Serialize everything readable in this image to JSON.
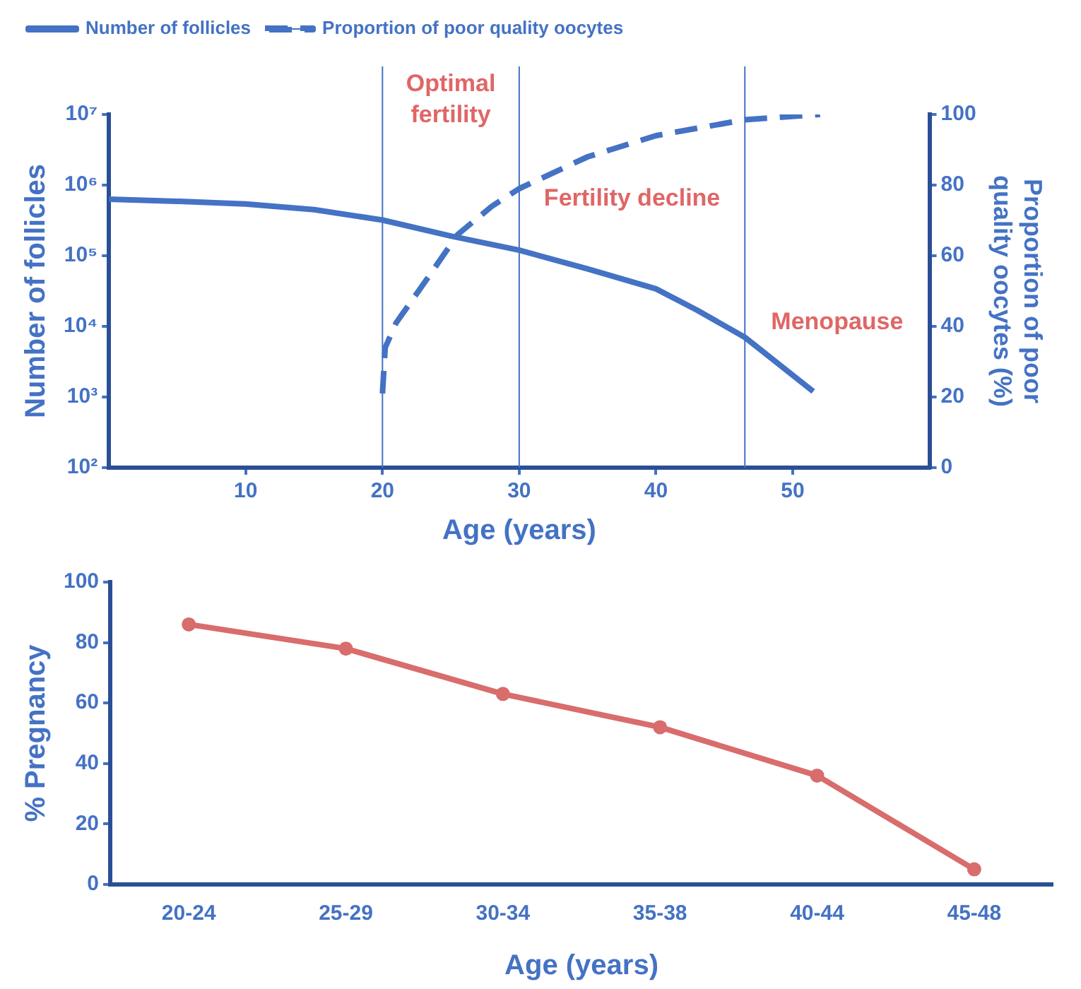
{
  "chart_data": [
    {
      "type": "line",
      "xlabel": "Age (years)",
      "ylabel": "Number of follicles",
      "y2label": "Proportion of poor quality oocytes (%)",
      "xlim": [
        0,
        60
      ],
      "xticks": [
        10,
        20,
        30,
        40,
        50
      ],
      "log": "y",
      "ylim": [
        100,
        10000000
      ],
      "yticks": [
        {
          "value": 100,
          "label": "10²"
        },
        {
          "value": 1000,
          "label": "10³"
        },
        {
          "value": 10000,
          "label": "10⁴"
        },
        {
          "value": 100000,
          "label": "10⁵"
        },
        {
          "value": 1000000,
          "label": "10⁶"
        },
        {
          "value": 10000000,
          "label": "10⁷"
        }
      ],
      "y2lim": [
        0,
        100
      ],
      "y2ticks": [
        0,
        20,
        40,
        60,
        80,
        100
      ],
      "legend": "top left",
      "marker": "none",
      "grid": false,
      "series": [
        {
          "name": "Number of follicles",
          "color": "#4472c4",
          "line_style": "solid",
          "x": [
            0,
            5,
            10,
            15,
            20,
            25,
            30,
            35,
            40,
            43,
            46.5,
            51.5
          ],
          "values": [
            630000,
            590000,
            540000,
            450000,
            320000,
            190000,
            120000,
            65000,
            34000,
            17000,
            7000,
            1200
          ]
        },
        {
          "name": "Proportion of poor quality oocytes",
          "color": "#4472c4",
          "line_style": "dashed",
          "axis": "y2",
          "x": [
            20,
            20.2,
            21,
            23,
            25.5,
            28,
            30,
            35,
            40,
            46.5,
            52
          ],
          "values": [
            21,
            34,
            41,
            52,
            66,
            74,
            79,
            88,
            94,
            98.5,
            100
          ]
        }
      ],
      "ref_lines": [
        {
          "axis": "x",
          "value": 20
        },
        {
          "axis": "x",
          "value": 30
        },
        {
          "axis": "x",
          "value": 46.5
        }
      ],
      "annotations": [
        "Optimal fertility",
        "Fertility decline",
        "Menopause"
      ]
    },
    {
      "type": "line",
      "xlabel": "Age (years)",
      "ylabel": "% Pregnancy",
      "categories": [
        "20-24",
        "25-29",
        "30-34",
        "35-38",
        "40-44",
        "45-48"
      ],
      "values": [
        86,
        78,
        63,
        52,
        36,
        5
      ],
      "color": "#d96c6c",
      "marker": "circle",
      "ylim": [
        0,
        100
      ],
      "yticks": [
        0,
        20,
        40,
        60,
        80,
        100
      ],
      "grid": false
    }
  ]
}
